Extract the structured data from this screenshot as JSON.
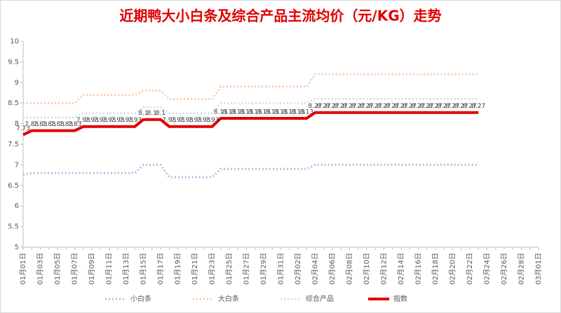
{
  "chart_data": {
    "type": "line",
    "title": "近期鸭大小白条及综合产品主流均价（元/KG）走势",
    "categories": [
      "01月01日",
      null,
      "01月03日",
      null,
      "01月05日",
      null,
      "01月07日",
      null,
      "01月09日",
      null,
      "01月11日",
      null,
      "01月13日",
      null,
      "01月15日",
      null,
      "01月17日",
      null,
      "01月19日",
      null,
      "01月21日",
      null,
      "01月23日",
      null,
      "01月25日",
      null,
      "01月27日",
      null,
      "01月29日",
      null,
      "01月31日",
      null,
      "02月02日",
      null,
      "02月04日",
      null,
      "02月06日",
      null,
      "02月08日",
      null,
      "02月10日",
      null,
      "02月12日",
      null,
      "02月14日",
      null,
      "02月16日",
      null,
      "02月18日",
      null,
      "02月20日",
      null,
      "02月22日",
      null,
      "02月24日",
      null,
      "02月26日",
      null,
      "02月28日",
      null,
      "03月01日"
    ],
    "series": [
      {
        "name": "小白条",
        "color": "#a9c4e4",
        "dash": true,
        "labels": false,
        "values": [
          6.76,
          6.8,
          6.8,
          6.8,
          6.8,
          6.8,
          6.8,
          6.8,
          6.8,
          6.8,
          6.8,
          6.8,
          6.8,
          6.8,
          7.0,
          7.0,
          7.0,
          6.7,
          6.7,
          6.7,
          6.7,
          6.7,
          6.7,
          6.9,
          6.9,
          6.9,
          6.9,
          6.9,
          6.9,
          6.9,
          6.9,
          6.9,
          6.9,
          6.9,
          7.0,
          7.0,
          7.0,
          7.0,
          7.0,
          7.0,
          7.0,
          7.0,
          7.0,
          7.0,
          7.0,
          7.0,
          7.0,
          7.0,
          7.0,
          7.0,
          7.0,
          7.0,
          7.0,
          7.0,
          null,
          null,
          null,
          null,
          null,
          null,
          null
        ]
      },
      {
        "name": "大白条",
        "color": "#f8cbad",
        "dash": true,
        "labels": false,
        "values": [
          8.5,
          8.5,
          8.5,
          8.5,
          8.5,
          8.5,
          8.5,
          8.7,
          8.7,
          8.7,
          8.7,
          8.7,
          8.7,
          8.7,
          8.8,
          8.8,
          8.8,
          8.6,
          8.6,
          8.6,
          8.6,
          8.6,
          8.6,
          8.9,
          8.9,
          8.9,
          8.9,
          8.9,
          8.9,
          8.9,
          8.9,
          8.9,
          8.9,
          8.9,
          9.2,
          9.2,
          9.2,
          9.2,
          9.2,
          9.2,
          9.2,
          9.2,
          9.2,
          9.2,
          9.2,
          9.2,
          9.2,
          9.2,
          9.2,
          9.2,
          9.2,
          9.2,
          9.2,
          9.2,
          null,
          null,
          null,
          null,
          null,
          null,
          null
        ]
      },
      {
        "name": "综合产品",
        "color": "#d6dce4",
        "dash": true,
        "labels": false,
        "values": [
          8.15,
          8.15,
          8.15,
          8.15,
          8.15,
          8.15,
          8.15,
          8.25,
          8.25,
          8.25,
          8.25,
          8.25,
          8.25,
          8.25,
          8.4,
          8.4,
          8.4,
          8.25,
          8.25,
          8.25,
          8.25,
          8.25,
          8.25,
          8.5,
          8.5,
          8.5,
          8.5,
          8.5,
          8.5,
          8.5,
          8.5,
          8.5,
          8.5,
          8.5,
          8.6,
          8.6,
          8.6,
          8.6,
          8.6,
          8.6,
          8.6,
          8.6,
          8.6,
          8.6,
          8.6,
          8.6,
          8.6,
          8.6,
          8.6,
          8.6,
          8.6,
          8.6,
          8.6,
          8.6,
          null,
          null,
          null,
          null,
          null,
          null,
          null
        ]
      },
      {
        "name": "指数",
        "color": "#e00000",
        "dash": false,
        "labels": true,
        "values": [
          7.73,
          7.83,
          7.83,
          7.83,
          7.83,
          7.83,
          7.83,
          7.93,
          7.93,
          7.93,
          7.93,
          7.93,
          7.93,
          7.93,
          8.1,
          8.1,
          8.1,
          7.93,
          7.93,
          7.93,
          7.93,
          7.93,
          7.93,
          8.13,
          8.13,
          8.13,
          8.13,
          8.13,
          8.13,
          8.13,
          8.13,
          8.13,
          8.13,
          8.13,
          8.27,
          8.27,
          8.27,
          8.27,
          8.27,
          8.27,
          8.27,
          8.27,
          8.27,
          8.27,
          8.27,
          8.27,
          8.27,
          8.27,
          8.27,
          8.27,
          8.27,
          8.27,
          8.27,
          8.27,
          null,
          null,
          null,
          null,
          null,
          null,
          null
        ]
      }
    ],
    "ylim": [
      5,
      10
    ],
    "yticks": [
      5,
      5.5,
      6,
      6.5,
      7,
      7.5,
      8,
      8.5,
      9,
      9.5,
      10
    ],
    "grid": false,
    "legend": "bottom"
  }
}
